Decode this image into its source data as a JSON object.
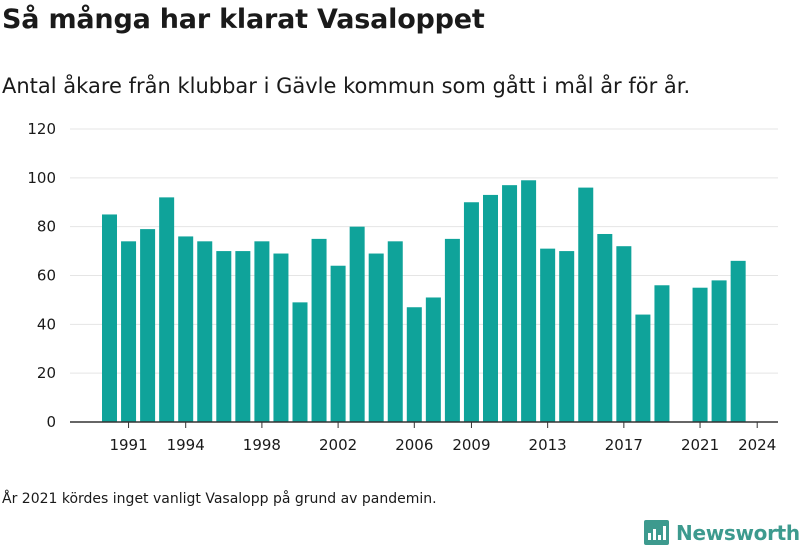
{
  "title": "Så många har klarat Vasaloppet",
  "subtitle": "Antal åkare från klubbar i Gävle kommun som gått i mål år för år.",
  "footnote": "År 2021 kördes inget vanligt Vasalopp på grund av pandemin.",
  "brand": {
    "name": "Newsworthy",
    "icon": "newsworthy-logo-icon",
    "color": "#3d9a8e"
  },
  "colors": {
    "bar": "#0fa39a",
    "grid": "#e5e5e5",
    "axis": "#333333"
  },
  "chart_data": {
    "type": "bar",
    "title": "Så många har klarat Vasaloppet",
    "xlabel": "",
    "ylabel": "",
    "ylim": [
      0,
      120
    ],
    "yticks": [
      0,
      20,
      40,
      60,
      80,
      100,
      120
    ],
    "xticks": [
      1991,
      1994,
      1998,
      2002,
      2006,
      2009,
      2013,
      2017,
      2021,
      2024
    ],
    "grid": true,
    "categories": [
      1990,
      1991,
      1992,
      1993,
      1994,
      1995,
      1996,
      1997,
      1998,
      1999,
      2000,
      2001,
      2002,
      2003,
      2004,
      2005,
      2006,
      2007,
      2008,
      2009,
      2010,
      2011,
      2012,
      2013,
      2014,
      2015,
      2016,
      2017,
      2018,
      2019,
      2020,
      2021,
      2022,
      2023,
      2024
    ],
    "values": [
      85,
      74,
      79,
      92,
      76,
      74,
      70,
      70,
      74,
      69,
      49,
      75,
      64,
      80,
      69,
      74,
      47,
      51,
      75,
      90,
      93,
      97,
      99,
      71,
      70,
      96,
      77,
      72,
      44,
      56,
      null,
      55,
      58,
      66,
      null
    ]
  }
}
